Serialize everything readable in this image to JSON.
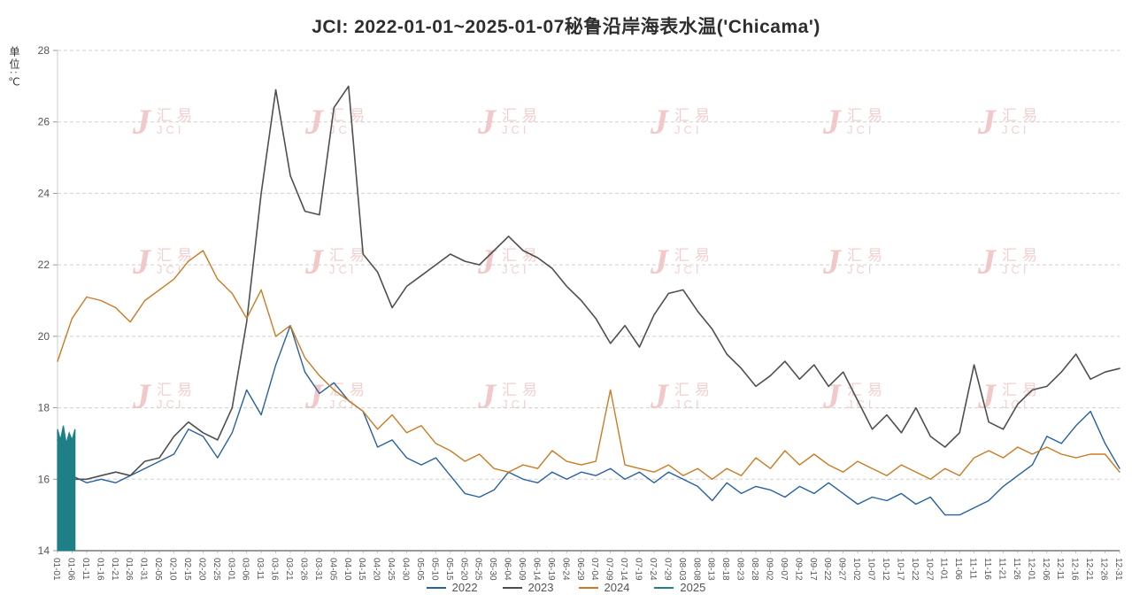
{
  "title": "JCI: 2022-01-01~2025-01-07秘鲁沿岸海表水温('Chicama')",
  "y_axis": {
    "unit_label": "单位:℃",
    "ticks": [
      14,
      16,
      18,
      20,
      22,
      24,
      26,
      28
    ]
  },
  "watermark": {
    "brand_cn": "汇易",
    "brand_en": "JCI",
    "color": "#e8a8a8"
  },
  "chart_data": {
    "type": "line",
    "title": "JCI: 2022-01-01~2025-01-07秘鲁沿岸海表水温('Chicama')",
    "xlabel": "",
    "ylabel": "单位:℃",
    "ylim": [
      14,
      28
    ],
    "grid": "dashed-horizontal",
    "legend_position": "bottom-center",
    "x_tick_interval_days": 5,
    "categories": [
      "01-01",
      "01-06",
      "01-11",
      "01-16",
      "01-21",
      "01-26",
      "01-31",
      "02-05",
      "02-10",
      "02-15",
      "02-20",
      "02-25",
      "03-01",
      "03-06",
      "03-11",
      "03-16",
      "03-21",
      "03-26",
      "03-31",
      "04-05",
      "04-10",
      "04-15",
      "04-20",
      "04-25",
      "04-30",
      "05-05",
      "05-10",
      "05-15",
      "05-20",
      "05-25",
      "05-30",
      "06-04",
      "06-09",
      "06-14",
      "06-19",
      "06-24",
      "06-29",
      "07-04",
      "07-09",
      "07-14",
      "07-19",
      "07-24",
      "07-29",
      "08-03",
      "08-08",
      "08-13",
      "08-18",
      "08-23",
      "08-28",
      "09-02",
      "09-07",
      "09-12",
      "09-17",
      "09-22",
      "09-27",
      "10-02",
      "10-07",
      "10-12",
      "10-17",
      "10-22",
      "10-27",
      "11-01",
      "11-06",
      "11-11",
      "11-16",
      "11-21",
      "11-26",
      "12-01",
      "12-06",
      "12-11",
      "12-16",
      "12-21",
      "12-26",
      "12-31"
    ],
    "series": [
      {
        "name": "2022",
        "color": "#27619f",
        "values": [
          17.3,
          16.1,
          15.9,
          16.0,
          15.9,
          16.1,
          16.3,
          16.5,
          16.7,
          17.4,
          17.2,
          16.6,
          17.3,
          18.5,
          17.8,
          19.2,
          20.3,
          19.0,
          18.4,
          18.7,
          18.2,
          17.9,
          16.9,
          17.1,
          16.6,
          16.4,
          16.6,
          16.1,
          15.6,
          15.5,
          15.7,
          16.2,
          16.0,
          15.9,
          16.2,
          16.0,
          16.2,
          16.1,
          16.3,
          16.0,
          16.2,
          15.9,
          16.2,
          16.0,
          15.8,
          15.4,
          15.9,
          15.6,
          15.8,
          15.7,
          15.5,
          15.8,
          15.6,
          15.9,
          15.6,
          15.3,
          15.5,
          15.4,
          15.6,
          15.3,
          15.5,
          15.0,
          15.0,
          15.2,
          15.4,
          15.8,
          16.1,
          16.4,
          17.2,
          17.0,
          17.5,
          17.9,
          17.0,
          16.3
        ]
      },
      {
        "name": "2023",
        "color": "#4f4f4f",
        "values": [
          17.1,
          16.0,
          16.0,
          16.1,
          16.2,
          16.1,
          16.5,
          16.6,
          17.2,
          17.6,
          17.3,
          17.1,
          18.0,
          20.4,
          24.0,
          26.9,
          24.5,
          23.5,
          23.4,
          26.4,
          27.0,
          22.3,
          21.8,
          20.8,
          21.4,
          21.7,
          22.0,
          22.3,
          22.1,
          22.0,
          22.4,
          22.8,
          22.4,
          22.2,
          21.9,
          21.4,
          21.0,
          20.5,
          19.8,
          20.3,
          19.7,
          20.6,
          21.2,
          21.3,
          20.7,
          20.2,
          19.5,
          19.1,
          18.6,
          18.9,
          19.3,
          18.8,
          19.2,
          18.6,
          19.0,
          18.2,
          17.4,
          17.8,
          17.3,
          18.0,
          17.2,
          16.9,
          17.3,
          19.2,
          17.6,
          17.4,
          18.1,
          18.5,
          18.6,
          19.0,
          19.5,
          18.8,
          19.0,
          19.1
        ]
      },
      {
        "name": "2024",
        "color": "#ca7b23",
        "values": [
          19.3,
          20.5,
          21.1,
          21.0,
          20.8,
          20.4,
          21.0,
          21.3,
          21.6,
          22.1,
          22.4,
          21.6,
          21.2,
          20.5,
          21.3,
          20.0,
          20.3,
          19.4,
          18.9,
          18.5,
          18.2,
          17.9,
          17.4,
          17.8,
          17.3,
          17.5,
          17.0,
          16.8,
          16.5,
          16.7,
          16.3,
          16.2,
          16.4,
          16.3,
          16.8,
          16.5,
          16.4,
          16.5,
          18.5,
          16.4,
          16.3,
          16.2,
          16.4,
          16.1,
          16.3,
          16.0,
          16.3,
          16.1,
          16.6,
          16.3,
          16.8,
          16.4,
          16.7,
          16.4,
          16.2,
          16.5,
          16.3,
          16.1,
          16.4,
          16.2,
          16.0,
          16.3,
          16.1,
          16.6,
          16.8,
          16.6,
          16.9,
          16.7,
          16.9,
          16.7,
          16.6,
          16.7,
          16.7,
          16.2
        ]
      },
      {
        "name": "2025",
        "color": "#1f7f86",
        "daily": true,
        "fill_to_baseline": true,
        "dates": [
          "01-01",
          "01-02",
          "01-03",
          "01-04",
          "01-05",
          "01-06",
          "01-07"
        ],
        "values": [
          17.4,
          17.1,
          17.5,
          17.0,
          17.3,
          17.1,
          17.4
        ]
      }
    ]
  }
}
